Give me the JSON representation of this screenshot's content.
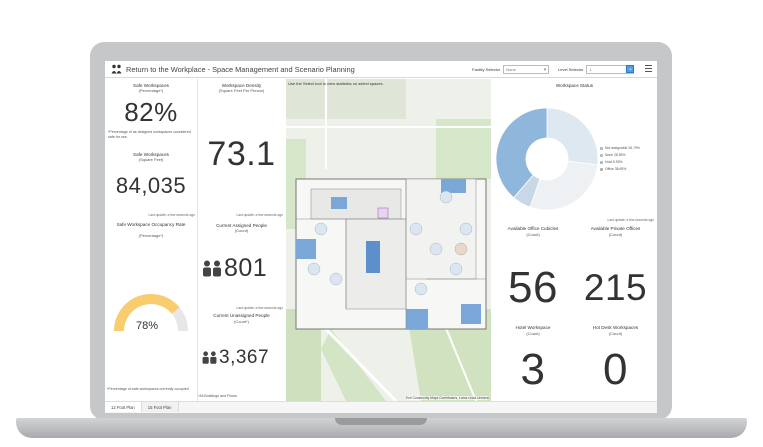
{
  "app": {
    "title": "Return to the Workplace - Space Management and Scenario Planning",
    "facility_label": "Facility Selector",
    "facility_value": "None",
    "level_label": "Level Selector",
    "level_value": "1"
  },
  "left": {
    "safe_pct_title": "Safe Workspaces",
    "safe_pct_sub": "(Percentage*)",
    "safe_pct_value": "82%",
    "safe_pct_note": "*Percentage of as designed workspaces considered safe for use.",
    "safe_sqft_title": "Safe Workspaces",
    "safe_sqft_sub": "(Square Feet)",
    "safe_sqft_value": "84,035",
    "last_update_1": "Last update: a few seconds ago",
    "occupancy_title": "Safe Workspace Occupancy Rate",
    "occupancy_sub": "(Percentage*)",
    "occupancy_value": "78%",
    "occupancy_fraction": 0.78,
    "occupancy_note": "*Percentage of safe workspaces currently occupied"
  },
  "mid": {
    "density_title": "Workspace Density",
    "density_sub": "(Square Feet Per Person)",
    "density_value": "73.1",
    "last_update": "Last update: a few seconds ago",
    "assigned_title": "Current Assigned People",
    "assigned_sub": "(Count)",
    "assigned_value": "801",
    "last_update_2": "Last update: a few seconds ago",
    "unassigned_title": "Current Unassigned People",
    "unassigned_sub": "(Count*)",
    "unassigned_value": "3,367",
    "footer_note": "*All Buildings and Floors"
  },
  "map": {
    "instruction": "Use the Select tool to view statistics on select spaces.",
    "attribution": "Esri Community Maps Contributors, Loma Linda Universi"
  },
  "right": {
    "status_title": "Workspace Status",
    "legend": [
      {
        "label": "Not assignable 26.79%",
        "color": "#dde8f0"
      },
      {
        "label": "None 28.59%",
        "color": "#eef1f3"
      },
      {
        "label": "Hold 5.93%",
        "color": "#c9d8e6"
      },
      {
        "label": "Office 38.69%",
        "color": "#8fb6db"
      }
    ],
    "pie": [
      {
        "value": 26.79,
        "color": "#dde8f0"
      },
      {
        "value": 28.59,
        "color": "#eef1f3"
      },
      {
        "value": 5.93,
        "color": "#c9d8e6"
      },
      {
        "value": 38.69,
        "color": "#8fb6db"
      }
    ],
    "last_update": "Last update: a few seconds ago",
    "office_cubicles_title": "Available Office Cubicles",
    "office_cubicles_sub": "(Count)",
    "office_cubicles_value": "56",
    "private_offices_title": "Available Private Offices",
    "private_offices_sub": "(Count)",
    "private_offices_value": "215",
    "hotel_title": "Hotel Workspace",
    "hotel_sub": "(Count)",
    "hotel_value": "3",
    "hotdesk_title": "Hot Desk Workspaces",
    "hotdesk_sub": "(Count)",
    "hotdesk_value": "0"
  },
  "tabs": [
    "12 Foot Plan",
    "15 Foot Plan"
  ],
  "colors": {
    "gauge": "#f9cc6d",
    "gauge_track": "#e7e7e7",
    "accent": "#4d9de0"
  }
}
